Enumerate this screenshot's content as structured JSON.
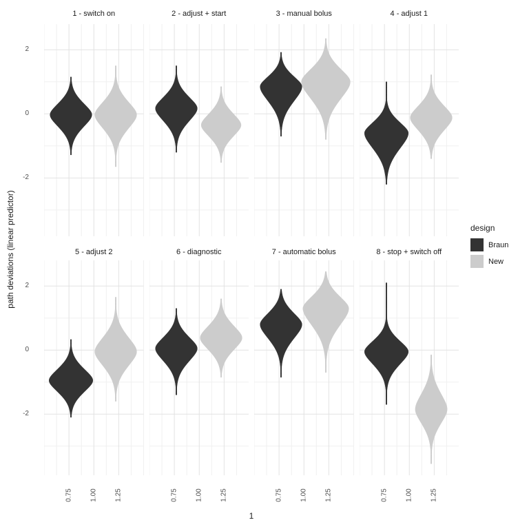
{
  "chart_data": {
    "type": "violin",
    "xlabel": "1",
    "ylabel": "path deviations (linear predictor)",
    "x_ticks": [
      "0.75",
      "1.00",
      "1.25"
    ],
    "x_tick_values": [
      0.75,
      1.0,
      1.25
    ],
    "y_ticks": [
      "2",
      "0",
      "-2"
    ],
    "y_tick_values": [
      2,
      0,
      -2
    ],
    "x_range": [
      0.5,
      1.5
    ],
    "y_range": [
      -3.9,
      2.8
    ],
    "grid": {
      "major_x": [
        0.75,
        1.0,
        1.25
      ],
      "minor_x": [
        0.5,
        0.625,
        0.875,
        1.125,
        1.375,
        1.5
      ],
      "major_y": [
        2,
        0,
        -2
      ],
      "minor_y": [
        1,
        -1,
        -3
      ],
      "major_color": "#e2e2e2",
      "minor_color": "#f0f0f0"
    },
    "legend": {
      "title": "design",
      "position": "right",
      "items": [
        {
          "label": "Braun",
          "color": "#333333"
        },
        {
          "label": "New",
          "color": "#cccccc"
        }
      ]
    },
    "panels": [
      {
        "title": "1 - switch on",
        "violins": [
          {
            "group": "Braun",
            "x": 0.77,
            "center": -0.03,
            "max": 1.15,
            "min": -1.28,
            "sigma_top": 0.4,
            "sigma_bottom": 0.42,
            "halfwidth": 0.21
          },
          {
            "group": "New",
            "x": 1.22,
            "center": -0.03,
            "max": 1.5,
            "min": -1.65,
            "sigma_top": 0.45,
            "sigma_bottom": 0.48,
            "halfwidth": 0.21
          }
        ]
      },
      {
        "title": "2 - adjust + start",
        "violins": [
          {
            "group": "Braun",
            "x": 0.77,
            "center": 0.17,
            "max": 1.5,
            "min": -1.2,
            "sigma_top": 0.4,
            "sigma_bottom": 0.45,
            "halfwidth": 0.21
          },
          {
            "group": "New",
            "x": 1.22,
            "center": -0.35,
            "max": 0.85,
            "min": -1.52,
            "sigma_top": 0.4,
            "sigma_bottom": 0.4,
            "halfwidth": 0.2
          }
        ]
      },
      {
        "title": "3 - manual bolus",
        "violins": [
          {
            "group": "Braun",
            "x": 0.77,
            "center": 0.85,
            "max": 1.92,
            "min": -0.7,
            "sigma_top": 0.36,
            "sigma_bottom": 0.52,
            "halfwidth": 0.21
          },
          {
            "group": "New",
            "x": 1.22,
            "center": 1.0,
            "max": 2.35,
            "min": -0.8,
            "sigma_top": 0.45,
            "sigma_bottom": 0.6,
            "halfwidth": 0.245
          }
        ]
      },
      {
        "title": "4 - adjust 1",
        "violins": [
          {
            "group": "Braun",
            "x": 0.77,
            "center": -0.6,
            "max": 1.0,
            "min": -2.2,
            "sigma_top": 0.38,
            "sigma_bottom": 0.55,
            "halfwidth": 0.22
          },
          {
            "group": "New",
            "x": 1.22,
            "center": -0.12,
            "max": 1.22,
            "min": -1.4,
            "sigma_top": 0.42,
            "sigma_bottom": 0.45,
            "halfwidth": 0.21
          }
        ]
      },
      {
        "title": "5 - adjust 2",
        "violins": [
          {
            "group": "Braun",
            "x": 0.77,
            "center": -0.95,
            "max": 0.33,
            "min": -2.1,
            "sigma_top": 0.4,
            "sigma_bottom": 0.4,
            "halfwidth": 0.22
          },
          {
            "group": "New",
            "x": 1.22,
            "center": -0.05,
            "max": 1.65,
            "min": -1.6,
            "sigma_top": 0.5,
            "sigma_bottom": 0.5,
            "halfwidth": 0.21
          }
        ]
      },
      {
        "title": "6 - diagnostic",
        "violins": [
          {
            "group": "Braun",
            "x": 0.77,
            "center": 0.05,
            "max": 1.3,
            "min": -1.4,
            "sigma_top": 0.4,
            "sigma_bottom": 0.45,
            "halfwidth": 0.21
          },
          {
            "group": "New",
            "x": 1.22,
            "center": 0.38,
            "max": 1.6,
            "min": -0.85,
            "sigma_top": 0.42,
            "sigma_bottom": 0.42,
            "halfwidth": 0.21
          }
        ]
      },
      {
        "title": "7 - automatic bolus",
        "violins": [
          {
            "group": "Braun",
            "x": 0.77,
            "center": 0.8,
            "max": 1.9,
            "min": -0.85,
            "sigma_top": 0.4,
            "sigma_bottom": 0.5,
            "halfwidth": 0.21
          },
          {
            "group": "New",
            "x": 1.22,
            "center": 1.3,
            "max": 2.45,
            "min": -0.7,
            "sigma_top": 0.42,
            "sigma_bottom": 0.6,
            "halfwidth": 0.23
          }
        ]
      },
      {
        "title": "8 - stop + switch off",
        "violins": [
          {
            "group": "Braun",
            "x": 0.77,
            "center": -0.05,
            "max": 2.1,
            "min": -1.7,
            "sigma_top": 0.38,
            "sigma_bottom": 0.45,
            "halfwidth": 0.22
          },
          {
            "group": "New",
            "x": 1.22,
            "center": -1.85,
            "max": -0.15,
            "min": -3.55,
            "sigma_top": 0.55,
            "sigma_bottom": 0.5,
            "halfwidth": 0.16
          }
        ]
      }
    ]
  }
}
